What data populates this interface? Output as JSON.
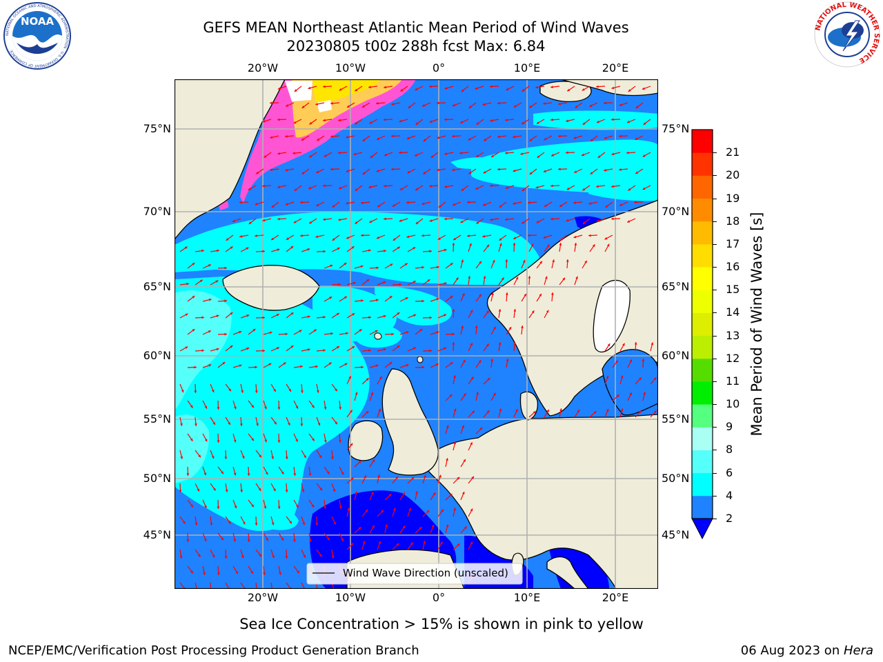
{
  "title": {
    "line1": "GEFS MEAN Northeast Atlantic Mean Period of Wind Waves",
    "line2": "20230805 t00z 288h fcst   Max: 6.84"
  },
  "logos": {
    "noaa_text": "NOAA",
    "noaa_ring": "NATIONAL OCEANIC AND ATMOSPHERIC ADMINISTRATION · U.S. DEPARTMENT OF COMMERCE",
    "nws_ring": "NATIONAL WEATHER SERVICE"
  },
  "map": {
    "lon_ticks": [
      "20°W",
      "10°W",
      "0°",
      "10°E",
      "20°E"
    ],
    "lat_ticks": [
      "75°N",
      "70°N",
      "65°N",
      "60°N",
      "55°N",
      "50°N",
      "45°N"
    ],
    "legend_label": "Wind Wave Direction (unscaled)",
    "colors": {
      "land": "#efedda",
      "ocean_2_4": "#1f82ff",
      "ocean_4_6": "#00ffff",
      "ocean_6_8": "#55fffa",
      "ice_low": "#ff55d4",
      "ice_high": "#ffe600",
      "below_2": "#0000ff",
      "arrow": "#ff0000",
      "grid": "#b0b0b0"
    }
  },
  "colorbar": {
    "label": "Mean Period of Wind Waves [s]",
    "ticks": [
      "2",
      "4",
      "6",
      "8",
      "9",
      "10",
      "11",
      "12",
      "13",
      "14",
      "15",
      "16",
      "17",
      "18",
      "19",
      "20",
      "21"
    ],
    "colors": [
      "#1f82ff",
      "#00ffff",
      "#55fffa",
      "#aafff4",
      "#55ff7f",
      "#00ee00",
      "#55dd00",
      "#bbee00",
      "#ddee00",
      "#eeff00",
      "#ffff00",
      "#ffdd00",
      "#ffbb00",
      "#ff8c00",
      "#ff6600",
      "#ff3300",
      "#ff0000"
    ],
    "extend_color": "#0000ff"
  },
  "footer": {
    "note": "Sea Ice Concentration > 15% is shown in pink to yellow",
    "org": "NCEP/EMC/Verification Post Processing Product Generation Branch",
    "date": "06 Aug 2023 on ",
    "host": "Hera"
  }
}
